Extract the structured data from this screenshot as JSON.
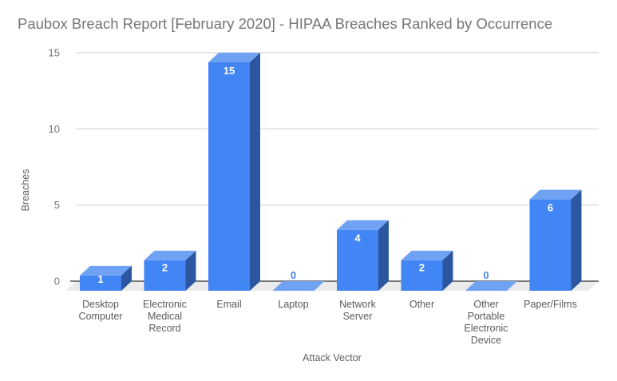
{
  "chart_data": {
    "type": "bar",
    "style": "3d-column",
    "title": "Paubox Breach Report [February 2020] - HIPAA Breaches Ranked by Occurrence",
    "xlabel": "Attack Vector",
    "ylabel": "Breaches",
    "categories": [
      "Desktop Computer",
      "Electronic Medical Record",
      "Email",
      "Laptop",
      "Network Server",
      "Other",
      "Other Portable Electronic Device",
      "Paper/Films"
    ],
    "values": [
      1,
      2,
      15,
      0,
      4,
      2,
      0,
      6
    ],
    "yticks": [
      0,
      5,
      10,
      15
    ],
    "ylim": [
      0,
      15
    ],
    "grid": "horizontal",
    "legend": "none",
    "colors": {
      "bar_front": "#4285f4",
      "bar_top": "#70a2f3",
      "bar_side": "#2c56a0",
      "value_label": "#ffffff",
      "zero_value_label": "#4285f4",
      "gridline": "#d6d6d6",
      "baseline": "#333333",
      "floor": "#ebebeb",
      "title_text": "#757575",
      "tick_text": "#757575",
      "axis_title_text": "#616161",
      "category_text": "#5a5a5a",
      "background": "#ffffff"
    }
  }
}
